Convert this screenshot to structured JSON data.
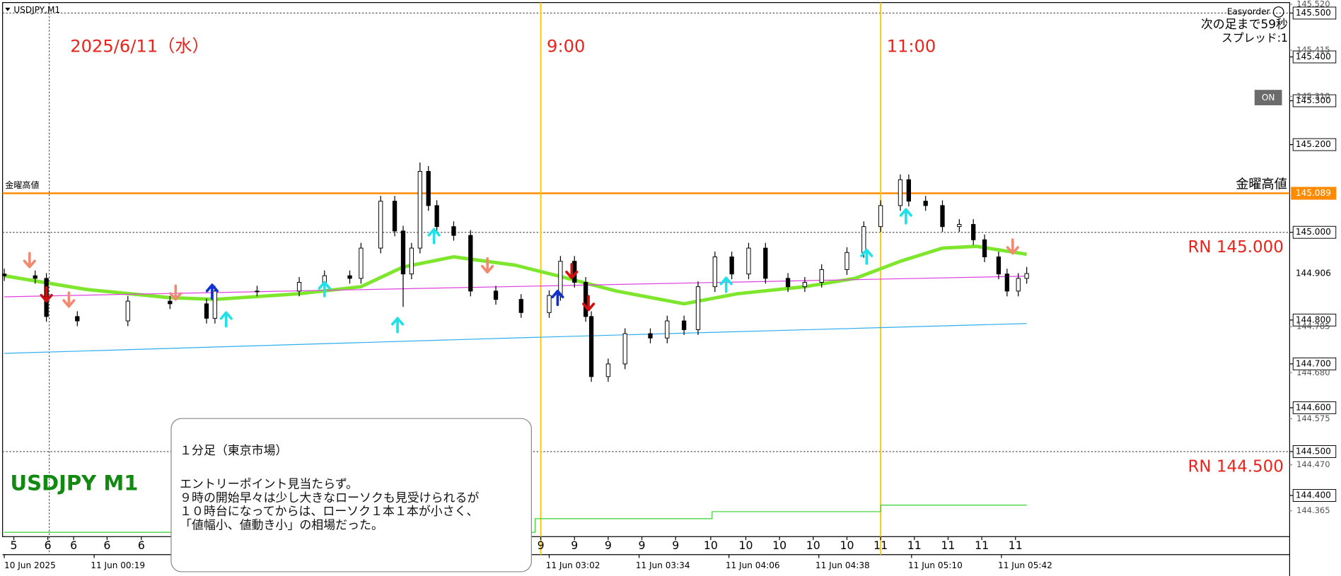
{
  "chart_data": {
    "type": "candlestick",
    "symbol_label": "USDJPY,M1",
    "date_label": "2025/6/11（水）",
    "watermark": "USDJPY M1",
    "xlim": [
      0,
      457
    ],
    "ylim": [
      144.31,
      145.52
    ],
    "x": [
      0,
      11,
      15,
      26,
      44,
      59,
      72,
      75,
      90,
      105,
      114,
      123,
      127,
      134,
      139,
      142,
      145,
      148,
      151,
      154,
      160,
      166,
      175,
      184,
      194,
      198,
      203,
      207,
      209,
      215,
      221,
      230,
      236,
      242,
      247,
      253,
      259,
      265,
      271,
      279,
      285,
      291,
      300,
      306,
      312,
      319,
      322,
      328,
      334,
      340,
      345,
      349,
      354,
      357,
      361,
      364
    ],
    "open": [
      144.905,
      144.901,
      144.895,
      144.808,
      144.798,
      144.843,
      144.837,
      144.804,
      144.866,
      144.866,
      144.886,
      144.901,
      144.895,
      144.964,
      145.071,
      145.003,
      144.905,
      144.964,
      145.139,
      145.061,
      145.013,
      144.993,
      144.866,
      144.847,
      144.817,
      144.856,
      144.934,
      144.886,
      144.808,
      144.671,
      144.7,
      144.769,
      144.759,
      144.798,
      144.778,
      144.876,
      144.944,
      144.905,
      144.964,
      144.895,
      144.876,
      144.886,
      144.915,
      144.954,
      145.013,
      145.061,
      145.12,
      145.071,
      145.061,
      145.013,
      145.018,
      144.983,
      144.944,
      144.905,
      144.866,
      144.895
    ],
    "high": [
      144.917,
      144.913,
      144.907,
      144.82,
      144.855,
      144.855,
      144.849,
      144.878,
      144.878,
      144.898,
      144.913,
      144.913,
      144.976,
      145.083,
      145.083,
      145.015,
      144.976,
      145.159,
      145.151,
      145.073,
      145.025,
      145.005,
      144.878,
      144.859,
      144.868,
      144.946,
      144.946,
      144.898,
      144.82,
      144.712,
      144.781,
      144.781,
      144.81,
      144.81,
      144.888,
      144.956,
      144.956,
      144.976,
      144.976,
      144.907,
      144.898,
      144.927,
      144.966,
      145.025,
      145.073,
      145.132,
      145.132,
      145.083,
      145.073,
      145.03,
      145.03,
      144.995,
      144.956,
      144.917,
      144.907,
      144.921
    ],
    "low": [
      144.889,
      144.883,
      144.796,
      144.786,
      144.786,
      144.825,
      144.792,
      144.792,
      144.854,
      144.854,
      144.874,
      144.883,
      144.883,
      144.952,
      144.991,
      144.83,
      144.893,
      144.952,
      145.049,
      145.001,
      144.981,
      144.854,
      144.835,
      144.805,
      144.805,
      144.844,
      144.874,
      144.796,
      144.659,
      144.659,
      144.688,
      144.747,
      144.747,
      144.766,
      144.766,
      144.864,
      144.893,
      144.893,
      144.883,
      144.864,
      144.864,
      144.874,
      144.903,
      144.942,
      145.001,
      145.049,
      145.059,
      145.049,
      145.001,
      145.001,
      144.971,
      144.932,
      144.893,
      144.854,
      144.854,
      144.883
    ],
    "close": [
      144.901,
      144.895,
      144.808,
      144.798,
      144.843,
      144.837,
      144.804,
      144.866,
      144.866,
      144.886,
      144.901,
      144.895,
      144.964,
      145.071,
      145.003,
      144.905,
      144.964,
      145.139,
      145.061,
      145.013,
      144.993,
      144.866,
      144.847,
      144.817,
      144.856,
      144.934,
      144.886,
      144.808,
      144.671,
      144.7,
      144.769,
      144.759,
      144.798,
      144.778,
      144.876,
      144.944,
      144.905,
      144.964,
      144.895,
      144.876,
      144.886,
      144.915,
      144.954,
      145.013,
      145.061,
      145.12,
      145.071,
      145.061,
      145.013,
      145.018,
      144.983,
      144.944,
      144.905,
      144.866,
      144.895,
      144.906
    ],
    "up_color": "#ffffff",
    "down_color": "#000000",
    "series": [
      {
        "color": "#7fe62e",
        "width": 4,
        "x": [
          0,
          29,
          59,
          75,
          105,
          127,
          142,
          160,
          182,
          197,
          218,
          242,
          261,
          285,
          303,
          319,
          334,
          346,
          364
        ],
        "values": [
          144.901,
          144.87,
          144.851,
          144.847,
          144.86,
          144.876,
          144.921,
          144.944,
          144.925,
          144.901,
          144.866,
          144.837,
          144.86,
          144.876,
          144.895,
          144.934,
          144.964,
          144.968,
          144.95
        ]
      },
      {
        "color": "#e040e0",
        "width": 1,
        "x": [
          0,
          364
        ],
        "values": [
          144.853,
          144.9
        ]
      },
      {
        "color": "#2eaef0",
        "width": 1,
        "x": [
          0,
          181,
          364
        ],
        "values": [
          144.724,
          144.759,
          144.792
        ]
      },
      {
        "color": "#32d032",
        "width": 1,
        "x": [
          0,
          189,
          189,
          252,
          252,
          312,
          312,
          364
        ],
        "values": [
          144.316,
          144.316,
          144.347,
          144.347,
          144.363,
          144.363,
          144.378,
          144.378
        ]
      }
    ],
    "signals": [
      {
        "x": 9,
        "y": 144.921,
        "dir": "down",
        "color": "#f08a70"
      },
      {
        "x": 23,
        "y": 144.831,
        "dir": "down",
        "color": "#f08a70"
      },
      {
        "x": 61,
        "y": 144.847,
        "dir": "down",
        "color": "#f08a70"
      },
      {
        "x": 172,
        "y": 144.909,
        "dir": "down",
        "color": "#f08a70"
      },
      {
        "x": 359,
        "y": 144.952,
        "dir": "down",
        "color": "#f08a70"
      },
      {
        "x": 15,
        "y": 144.843,
        "dir": "down",
        "color": "#d01010"
      },
      {
        "x": 202,
        "y": 144.896,
        "dir": "down",
        "color": "#d01010"
      },
      {
        "x": 208,
        "y": 144.823,
        "dir": "down",
        "color": "#d01010"
      },
      {
        "x": 79,
        "y": 144.817,
        "dir": "up",
        "color": "#20e0e8"
      },
      {
        "x": 114,
        "y": 144.886,
        "dir": "up",
        "color": "#20e0e8"
      },
      {
        "x": 140,
        "y": 144.804,
        "dir": "up",
        "color": "#20e0e8"
      },
      {
        "x": 153,
        "y": 145.007,
        "dir": "up",
        "color": "#20e0e8"
      },
      {
        "x": 257,
        "y": 144.896,
        "dir": "up",
        "color": "#20e0e8"
      },
      {
        "x": 307,
        "y": 144.96,
        "dir": "up",
        "color": "#20e0e8"
      },
      {
        "x": 321,
        "y": 145.052,
        "dir": "up",
        "color": "#20e0e8"
      },
      {
        "x": 74,
        "y": 144.88,
        "dir": "up",
        "color": "#1030d0"
      },
      {
        "x": 197,
        "y": 144.866,
        "dir": "up",
        "color": "#1030d0"
      }
    ],
    "hlines": [
      {
        "value": 145.089,
        "label": "金曜高値",
        "color": "#ff8c00",
        "style": "solid"
      },
      {
        "value": 145.0,
        "label": "RN 145.000",
        "color": "#555555",
        "style": "dotted"
      },
      {
        "value": 144.5,
        "label": "RN 144.500",
        "color": "#555555",
        "style": "dotted"
      },
      {
        "value": 145.5,
        "color": "#555555",
        "style": "dotted"
      }
    ],
    "vlines": [
      {
        "x": 191,
        "label": "9:00",
        "color": "#ffc800",
        "style": "solid"
      },
      {
        "x": 312,
        "label": "11:00",
        "color": "#ffc800",
        "style": "solid"
      },
      {
        "x": 16,
        "color": "#555555",
        "style": "dotted"
      }
    ],
    "yticks": [
      {
        "value": 145.5,
        "label": "145.500"
      },
      {
        "value": 145.4,
        "label": "145.400"
      },
      {
        "value": 145.3,
        "label": "145.300"
      },
      {
        "value": 145.2,
        "label": "145.200"
      },
      {
        "value": 145.0,
        "label": "145.000"
      },
      {
        "value": 144.8,
        "label": "144.800"
      },
      {
        "value": 144.7,
        "label": "144.700"
      },
      {
        "value": 144.6,
        "label": "144.600"
      },
      {
        "value": 144.5,
        "label": "144.500"
      },
      {
        "value": 144.4,
        "label": "144.400"
      }
    ],
    "yticks_minor": [
      {
        "value": 145.52,
        "label": "145.520"
      },
      {
        "value": 145.415,
        "label": "145.415"
      },
      {
        "value": 145.31,
        "label": "145.310"
      },
      {
        "value": 144.785,
        "label": "144.785"
      },
      {
        "value": 144.68,
        "label": "144.680"
      },
      {
        "value": 144.575,
        "label": "144.575"
      },
      {
        "value": 144.47,
        "label": "144.470"
      },
      {
        "value": 144.365,
        "label": "144.365"
      }
    ],
    "price_labels": [
      {
        "value": 145.089,
        "label": "145.089",
        "color": "#ff8c00"
      },
      {
        "value": 144.906,
        "label": "144.906",
        "color": "#ffffff"
      }
    ],
    "hour_ticks": [
      {
        "value": 3.4,
        "label": "5"
      },
      {
        "value": 15.5,
        "label": "6"
      },
      {
        "value": 24.7,
        "label": "6"
      },
      {
        "value": 36.6,
        "label": "6"
      },
      {
        "value": 48.8,
        "label": "6"
      },
      {
        "value": 191,
        "label": "9"
      },
      {
        "value": 203,
        "label": "9"
      },
      {
        "value": 215,
        "label": "9"
      },
      {
        "value": 227,
        "label": "9"
      },
      {
        "value": 239,
        "label": "9"
      },
      {
        "value": 251.5,
        "label": "10"
      },
      {
        "value": 264,
        "label": "10"
      },
      {
        "value": 276,
        "label": "10"
      },
      {
        "value": 288,
        "label": "10"
      },
      {
        "value": 300,
        "label": "10"
      },
      {
        "value": 312,
        "label": "11"
      },
      {
        "value": 324,
        "label": "11"
      },
      {
        "value": 336,
        "label": "11"
      },
      {
        "value": 348,
        "label": "11"
      },
      {
        "value": 360,
        "label": "11"
      }
    ],
    "xticks": [
      {
        "value": 0,
        "label": "10 Jun 2025"
      },
      {
        "value": 32,
        "label": "11 Jun 00:19"
      },
      {
        "value": 194,
        "label": "11 Jun 03:02"
      },
      {
        "value": 226,
        "label": "11 Jun 03:34"
      },
      {
        "value": 258,
        "label": "11 Jun 04:06"
      },
      {
        "value": 290,
        "label": "11 Jun 04:38"
      },
      {
        "value": 323,
        "label": "11 Jun 05:10"
      },
      {
        "value": 355,
        "label": "11 Jun 05:42"
      }
    ]
  },
  "panel": {
    "title": "Easyorder",
    "countdown": "次の足まで59秒",
    "spread": "スプレッド:1",
    "button": "ON"
  },
  "comment": {
    "lines": [
      "１分足（東京市場）",
      "エントリーポイント見当たらず。",
      "９時の開始早々は少し大きなローソクも見受けられるが",
      "１０時台になってからは、ローソク１本１本が小さく、",
      "「値幅小、値動き小」の相場だった。"
    ]
  }
}
